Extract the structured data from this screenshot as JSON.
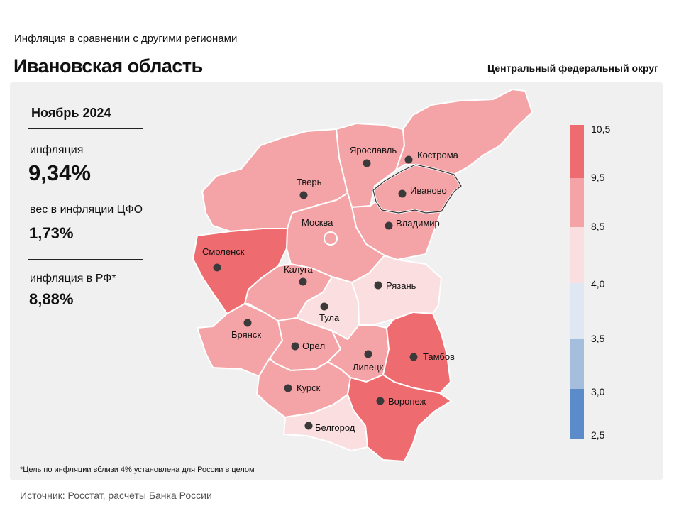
{
  "header": {
    "subtitle": "Инфляция  в сравнении  с другими  регионами",
    "title": "Ивановская область",
    "district": "Центральный федеральный округ"
  },
  "stats": {
    "period": "Ноябрь 2024",
    "inflation_label": "инфляция",
    "inflation_value": "9,34%",
    "weight_label": "вес в инфляции  ЦФО",
    "weight_value": "1,73%",
    "rf_label": "инфляция  в РФ*",
    "rf_value": "8,88%"
  },
  "footnote": "*Цель по инфляции вблизи 4% установлена для России в целом",
  "source": "Источник: Росстат, расчеты Банка России",
  "legend": {
    "ticks": [
      "10,5",
      "9,5",
      "8,5",
      "4,0",
      "3,5",
      "3,0",
      "2,5"
    ],
    "colors": {
      "high": "#ee6b70",
      "upper": "#f4a4a6",
      "mid": "#fbdfe0",
      "neutral": "#dfe7f3",
      "low": "#a6bedd",
      "lowest": "#5b8cc9"
    }
  },
  "regions": [
    {
      "id": "tver",
      "name": "Тверь",
      "bucket": "upper"
    },
    {
      "id": "yaroslavl",
      "name": "Ярославль",
      "bucket": "upper"
    },
    {
      "id": "kostroma",
      "name": "Кострома",
      "bucket": "upper"
    },
    {
      "id": "ivanovo",
      "name": "Иваново",
      "bucket": "upper",
      "highlight": true
    },
    {
      "id": "vladimir",
      "name": "Владимир",
      "bucket": "upper"
    },
    {
      "id": "moscow",
      "name": "Москва",
      "bucket": "upper",
      "capital": true
    },
    {
      "id": "smolensk",
      "name": "Смоленск",
      "bucket": "high"
    },
    {
      "id": "kaluga",
      "name": "Калуга",
      "bucket": "upper"
    },
    {
      "id": "tula",
      "name": "Тула",
      "bucket": "mid"
    },
    {
      "id": "ryazan",
      "name": "Рязань",
      "bucket": "mid"
    },
    {
      "id": "bryansk",
      "name": "Брянск",
      "bucket": "upper"
    },
    {
      "id": "orel",
      "name": "Орёл",
      "bucket": "upper"
    },
    {
      "id": "lipetsk",
      "name": "Липецк",
      "bucket": "upper"
    },
    {
      "id": "tambov",
      "name": "Тамбов",
      "bucket": "high"
    },
    {
      "id": "kursk",
      "name": "Курск",
      "bucket": "upper"
    },
    {
      "id": "voronezh",
      "name": "Воронеж",
      "bucket": "high"
    },
    {
      "id": "belgorod",
      "name": "Белгород",
      "bucket": "mid"
    }
  ]
}
